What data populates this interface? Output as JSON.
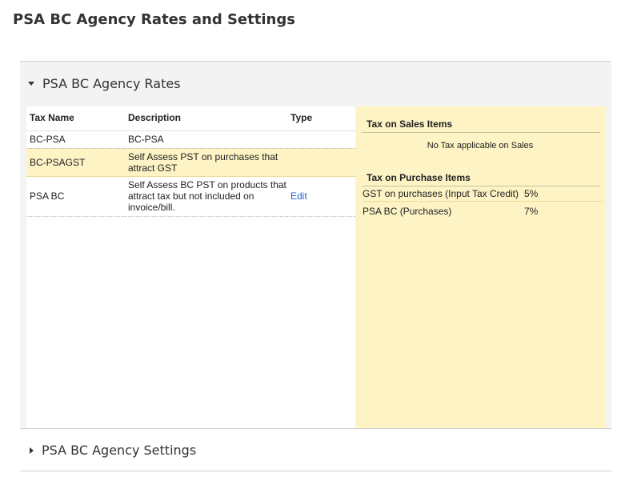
{
  "page": {
    "title": "PSA BC Agency Rates and Settings"
  },
  "rates_section": {
    "title": "PSA BC Agency Rates",
    "expanded": true,
    "columns": {
      "tax_name": "Tax Name",
      "description": "Description",
      "type": "Type"
    },
    "rows": [
      {
        "tax_name": "BC-PSA",
        "description": "BC-PSA",
        "type": ""
      },
      {
        "tax_name": "BC-PSAGST",
        "description": "Self Assess PST on purchases that attract GST",
        "type": ""
      },
      {
        "tax_name": "PSA BC",
        "description": "Self Assess BC PST on products that attract tax but not included on invoice/bill.",
        "type": "Edit"
      }
    ]
  },
  "tax_panel": {
    "sales_heading": "Tax on Sales Items",
    "sales_empty": "No Tax applicable on Sales",
    "purchase_heading": "Tax on Purchase Items",
    "purchase_items": [
      {
        "name": "GST on purchases (Input Tax Credit)",
        "rate": "5%"
      },
      {
        "name": "PSA BC (Purchases)",
        "rate": "7%"
      }
    ]
  },
  "settings_section": {
    "title": "PSA BC Agency Settings",
    "expanded": false
  },
  "colors": {
    "highlight": "#fdf3c5",
    "link": "#1a62d6",
    "panel_bg": "#f3f3f3"
  }
}
